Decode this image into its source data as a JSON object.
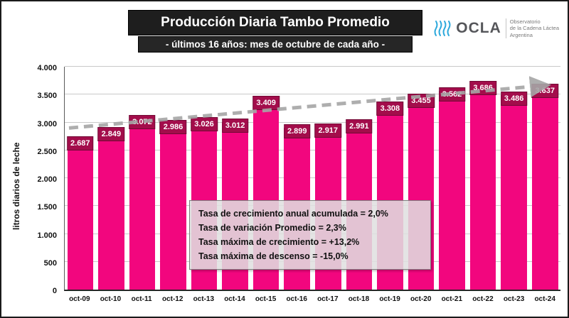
{
  "header": {
    "title": "Producción Diaria Tambo Promedio",
    "subtitle": "- últimos 16 años: mes de octubre de cada año -",
    "logo": {
      "name": "OCLA",
      "tagline_lines": [
        "Observatorio",
        "de la Cadena Láctea",
        "Argentina"
      ],
      "icon_color": "#2ea9dc"
    }
  },
  "chart_data": {
    "type": "bar",
    "title": "Producción Diaria Tambo Promedio",
    "subtitle": "- últimos 16 años: mes de octubre de cada año -",
    "categories": [
      "oct-09",
      "oct-10",
      "oct-11",
      "oct-12",
      "oct-13",
      "oct-14",
      "oct-15",
      "oct-16",
      "oct-17",
      "oct-18",
      "oct-19",
      "oct-20",
      "oct-21",
      "oct-22",
      "oct-23",
      "oct-24"
    ],
    "values": [
      2687,
      2849,
      3072,
      2986,
      3026,
      3012,
      3409,
      2899,
      2917,
      2991,
      3308,
      3455,
      3562,
      3686,
      3486,
      3637
    ],
    "value_labels": [
      "2.687",
      "2.849",
      "3.072",
      "2.986",
      "3.026",
      "3.012",
      "3.409",
      "2.899",
      "2.917",
      "2.991",
      "3.308",
      "3.455",
      "3.562",
      "3.686",
      "3.486",
      "3.637"
    ],
    "xlabel": "",
    "ylabel": "litros diarios de leche",
    "ylim": [
      0,
      4000
    ],
    "ytick_step": 500,
    "ytick_labels": [
      "0",
      "500",
      "1.000",
      "1.500",
      "2.000",
      "2.500",
      "3.000",
      "3.500",
      "4.000"
    ],
    "grid": true,
    "legend": false,
    "bar_color": "#f2067e",
    "label_bg": "#a30d4b",
    "trend": {
      "start_value": 2900,
      "end_value": 3670,
      "color": "#a6a6a6",
      "style": "dashed"
    }
  },
  "annotation": {
    "lines": [
      "Tasa de crecimiento anual acumulada = 2,0%",
      "Tasa de variación Promedio = 2,3%",
      "Tasa máxima de crecimiento = +13,2%",
      "Tasa máxima de descenso = -15,0%"
    ]
  }
}
